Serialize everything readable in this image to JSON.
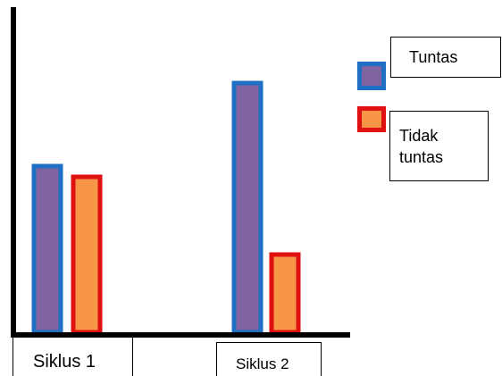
{
  "chart_data": {
    "type": "bar",
    "categories": [
      "Siklus 1",
      "Siklus 2"
    ],
    "series": [
      {
        "name": "Tuntas",
        "values": [
          62,
          93
        ],
        "fill": "#8064A2",
        "stroke": "#1F6FC5"
      },
      {
        "name": "Tidak tuntas",
        "values": [
          58,
          29
        ],
        "fill": "#F79646",
        "stroke": "#E01010"
      }
    ],
    "ylim": [
      0,
      100
    ],
    "grid": false,
    "legend": "right"
  }
}
